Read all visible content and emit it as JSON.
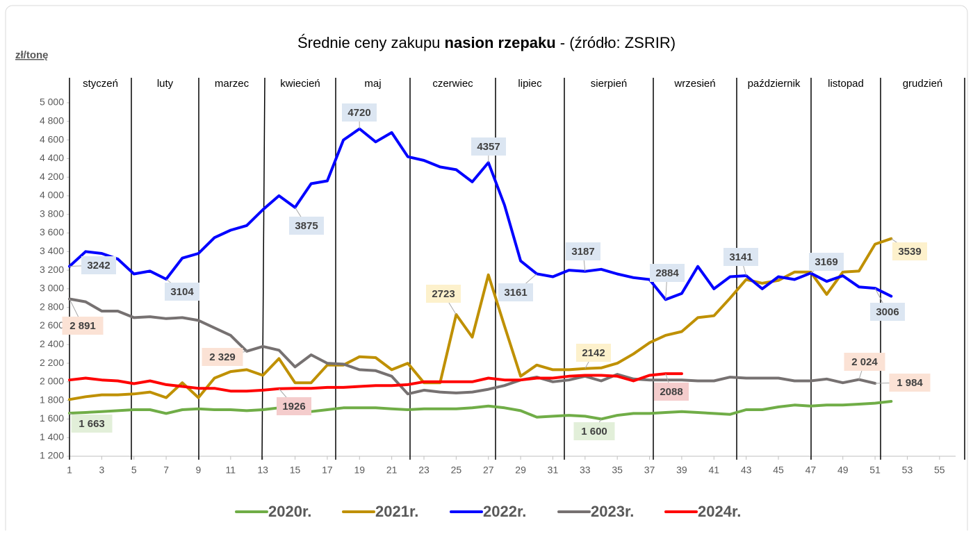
{
  "chart_data": {
    "type": "line",
    "title": {
      "start": "Średnie ceny zakupu ",
      "bold": "nasion rzepaku",
      "end": " - (źródło: ZSRIR)"
    },
    "y_label": "zł/tonę",
    "months": [
      "styczeń",
      "luty",
      "marzec",
      "kwiecień",
      "maj",
      "czerwiec",
      "lipiec",
      "sierpień",
      "wrzesień",
      "październik",
      "listopad",
      "grudzień"
    ],
    "x": [
      1,
      2,
      3,
      4,
      5,
      6,
      7,
      8,
      9,
      10,
      11,
      12,
      13,
      14,
      15,
      16,
      17,
      18,
      19,
      20,
      21,
      22,
      23,
      24,
      25,
      26,
      27,
      28,
      29,
      30,
      31,
      32,
      33,
      34,
      35,
      36,
      37,
      38,
      39,
      40,
      41,
      42,
      43,
      44,
      45,
      46,
      47,
      48,
      49,
      50,
      51,
      52
    ],
    "xlim": [
      1,
      56
    ],
    "xticks": [
      1,
      3,
      5,
      7,
      9,
      11,
      13,
      15,
      17,
      19,
      21,
      23,
      25,
      27,
      29,
      31,
      33,
      35,
      37,
      39,
      41,
      43,
      45,
      47,
      49,
      51,
      53,
      55
    ],
    "ylim": [
      1200,
      5000
    ],
    "yticks": [
      {
        "value": 1200,
        "label": "1 200"
      },
      {
        "value": 1400,
        "label": "1 400"
      },
      {
        "value": 1600,
        "label": "1 600"
      },
      {
        "value": 1800,
        "label": "1 800"
      },
      {
        "value": 2000,
        "label": "2 000"
      },
      {
        "value": 2200,
        "label": "2 200"
      },
      {
        "value": 2400,
        "label": "2 400"
      },
      {
        "value": 2600,
        "label": "2 600"
      },
      {
        "value": 2800,
        "label": "2 800"
      },
      {
        "value": 3000,
        "label": "3 000"
      },
      {
        "value": 3200,
        "label": "3 200"
      },
      {
        "value": 3400,
        "label": "3 400"
      },
      {
        "value": 3600,
        "label": "3 600"
      },
      {
        "value": 3800,
        "label": "3 800"
      },
      {
        "value": 4000,
        "label": "4 000"
      },
      {
        "value": 4200,
        "label": "4 200"
      },
      {
        "value": 4400,
        "label": "4 400"
      },
      {
        "value": 4600,
        "label": "4 600"
      },
      {
        "value": 4800,
        "label": "4 800"
      },
      {
        "value": 5000,
        "label": "5 000"
      }
    ],
    "legend": "bottom",
    "series": [
      {
        "name": "2020r.",
        "color": "#70ad47",
        "values": [
          1663,
          1670,
          1680,
          1690,
          1700,
          1700,
          1660,
          1700,
          1710,
          1700,
          1700,
          1690,
          1700,
          1720,
          1730,
          1680,
          1700,
          1720,
          1720,
          1720,
          1710,
          1700,
          1710,
          1710,
          1710,
          1720,
          1740,
          1720,
          1690,
          1620,
          1630,
          1640,
          1630,
          1600,
          1640,
          1660,
          1660,
          1670,
          1680,
          1670,
          1660,
          1650,
          1700,
          1700,
          1730,
          1750,
          1740,
          1750,
          1750,
          1760,
          1770,
          1790
        ]
      },
      {
        "name": "2021r.",
        "color": "#bf9000",
        "values": [
          1810,
          1840,
          1860,
          1860,
          1870,
          1890,
          1830,
          1990,
          1830,
          2040,
          2110,
          2130,
          2070,
          2250,
          1990,
          1990,
          2180,
          2180,
          2270,
          2260,
          2130,
          2200,
          1990,
          1990,
          2723,
          2480,
          3150,
          2600,
          2060,
          2180,
          2130,
          2130,
          2142,
          2150,
          2200,
          2300,
          2420,
          2500,
          2540,
          2690,
          2710,
          2900,
          3100,
          3060,
          3090,
          3180,
          3180,
          2940,
          3180,
          3190,
          3480,
          3539
        ]
      },
      {
        "name": "2022r.",
        "color": "#0000ff",
        "values": [
          3242,
          3400,
          3380,
          3320,
          3160,
          3190,
          3104,
          3330,
          3380,
          3550,
          3630,
          3680,
          3850,
          4000,
          3875,
          4130,
          4160,
          4600,
          4720,
          4580,
          4680,
          4420,
          4380,
          4310,
          4280,
          4150,
          4357,
          3900,
          3300,
          3161,
          3130,
          3200,
          3187,
          3210,
          3160,
          3120,
          3100,
          2884,
          2950,
          3240,
          3000,
          3130,
          3141,
          3000,
          3130,
          3100,
          3169,
          3080,
          3140,
          3020,
          3006,
          2920
        ]
      },
      {
        "name": "2023r.",
        "color": "#767171",
        "values": [
          2891,
          2860,
          2760,
          2760,
          2690,
          2700,
          2680,
          2690,
          2660,
          2580,
          2500,
          2329,
          2380,
          2340,
          2160,
          2290,
          2200,
          2190,
          2130,
          2120,
          2060,
          1870,
          1910,
          1890,
          1880,
          1890,
          1920,
          1960,
          2020,
          2050,
          2000,
          2020,
          2060,
          2010,
          2080,
          2030,
          2020,
          2020,
          2020,
          2010,
          2010,
          2050,
          2040,
          2040,
          2040,
          2010,
          2010,
          2030,
          1990,
          2024,
          1984,
          null
        ]
      },
      {
        "name": "2024r.",
        "color": "#ff0000",
        "values": [
          2020,
          2040,
          2020,
          2010,
          1980,
          2010,
          1970,
          1950,
          1930,
          1930,
          1900,
          1900,
          1910,
          1926,
          1930,
          1930,
          1940,
          1940,
          1950,
          1960,
          1960,
          1970,
          2000,
          2000,
          2000,
          2000,
          2040,
          2020,
          2020,
          2040,
          2040,
          2060,
          2070,
          2070,
          2060,
          2010,
          2070,
          2088,
          2088,
          null,
          null,
          null,
          null,
          null,
          null,
          null,
          null,
          null,
          null,
          null,
          null,
          null
        ]
      }
    ],
    "annotations": [
      {
        "text": "3242",
        "x": 1,
        "y": 3242,
        "fill": "#dce6f2"
      },
      {
        "text": "3104",
        "x": 7,
        "y": 3104,
        "fill": "#dce6f2"
      },
      {
        "text": "3875",
        "x": 15,
        "y": 3875,
        "fill": "#dce6f2"
      },
      {
        "text": "4720",
        "x": 19,
        "y": 4720,
        "fill": "#dce6f2"
      },
      {
        "text": "4357",
        "x": 27,
        "y": 4357,
        "fill": "#dce6f2"
      },
      {
        "text": "3161",
        "x": 30,
        "y": 3161,
        "fill": "#dce6f2"
      },
      {
        "text": "3187",
        "x": 33,
        "y": 3187,
        "fill": "#dce6f2"
      },
      {
        "text": "2884",
        "x": 38,
        "y": 2884,
        "fill": "#dce6f2"
      },
      {
        "text": "3141",
        "x": 43,
        "y": 3141,
        "fill": "#dce6f2"
      },
      {
        "text": "3169",
        "x": 47,
        "y": 3169,
        "fill": "#dce6f2"
      },
      {
        "text": "3006",
        "x": 51,
        "y": 3006,
        "fill": "#dce6f2"
      },
      {
        "text": "2723",
        "x": 25,
        "y": 2723,
        "fill": "#fdf1cc"
      },
      {
        "text": "2142",
        "x": 33,
        "y": 2142,
        "fill": "#fdf1cc"
      },
      {
        "text": "3539",
        "x": 52,
        "y": 3539,
        "fill": "#fdf1cc"
      },
      {
        "text": "2 891",
        "x": 1,
        "y": 2891,
        "fill": "#fbe2d5"
      },
      {
        "text": "2 329",
        "x": 12,
        "y": 2329,
        "fill": "#fbe2d5"
      },
      {
        "text": "2 024",
        "x": 50,
        "y": 2024,
        "fill": "#fbe2d5"
      },
      {
        "text": "1 984",
        "x": 51,
        "y": 1984,
        "fill": "#fbe2d5"
      },
      {
        "text": "1926",
        "x": 14,
        "y": 1926,
        "fill": "#f4cccc"
      },
      {
        "text": "2088",
        "x": 38,
        "y": 2088,
        "fill": "#f4cccc"
      },
      {
        "text": "1 663",
        "x": 1,
        "y": 1663,
        "fill": "#e2efd9"
      },
      {
        "text": "1 600",
        "x": 34,
        "y": 1600,
        "fill": "#e2efd9"
      }
    ]
  }
}
